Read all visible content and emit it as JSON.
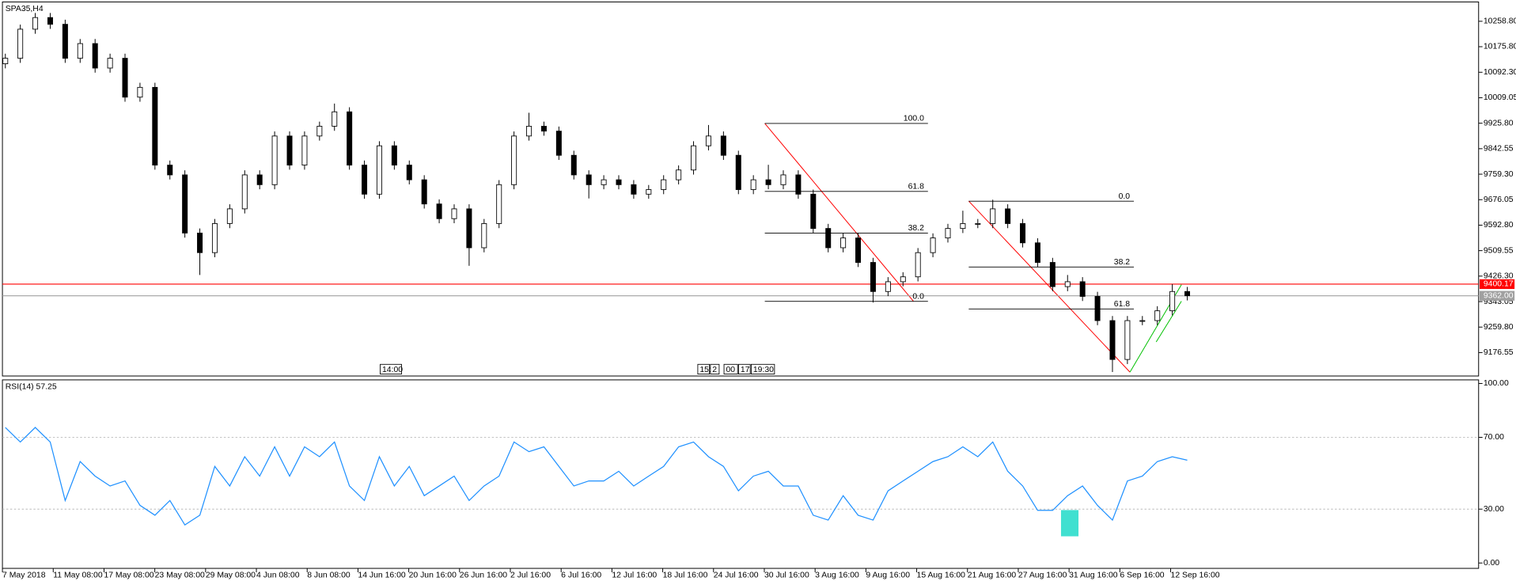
{
  "chart_data": [
    {
      "type": "candlestick",
      "title": "SPA35,H4",
      "ohlc": [
        [
          10120,
          10153,
          10105,
          10138
        ],
        [
          10138,
          10248,
          10123,
          10233
        ],
        [
          10233,
          10286,
          10218,
          10271
        ],
        [
          10271,
          10286,
          10234,
          10249
        ],
        [
          10249,
          10264,
          10123,
          10138
        ],
        [
          10138,
          10201,
          10123,
          10186
        ],
        [
          10186,
          10201,
          10091,
          10106
        ],
        [
          10106,
          10153,
          10091,
          10138
        ],
        [
          10138,
          10153,
          9996,
          10011
        ],
        [
          10011,
          10058,
          9996,
          10043
        ],
        [
          10043,
          10058,
          9774,
          9789
        ],
        [
          9789,
          9804,
          9742,
          9757
        ],
        [
          9757,
          9772,
          9552,
          9567
        ],
        [
          9567,
          9582,
          9430,
          9503
        ],
        [
          9503,
          9613,
          9488,
          9598
        ],
        [
          9598,
          9661,
          9583,
          9646
        ],
        [
          9646,
          9772,
          9631,
          9757
        ],
        [
          9757,
          9772,
          9710,
          9725
        ],
        [
          9725,
          9899,
          9710,
          9884
        ],
        [
          9884,
          9899,
          9774,
          9789
        ],
        [
          9789,
          9899,
          9774,
          9884
        ],
        [
          9884,
          9931,
          9869,
          9916
        ],
        [
          9916,
          9990,
          9901,
          9963
        ],
        [
          9963,
          9978,
          9774,
          9789
        ],
        [
          9789,
          9804,
          9679,
          9694
        ],
        [
          9694,
          9867,
          9679,
          9852
        ],
        [
          9852,
          9867,
          9774,
          9789
        ],
        [
          9789,
          9804,
          9726,
          9741
        ],
        [
          9741,
          9756,
          9647,
          9662
        ],
        [
          9662,
          9677,
          9599,
          9614
        ],
        [
          9614,
          9661,
          9599,
          9646
        ],
        [
          9646,
          9661,
          9460,
          9519
        ],
        [
          9519,
          9613,
          9504,
          9598
        ],
        [
          9598,
          9740,
          9583,
          9725
        ],
        [
          9725,
          9899,
          9710,
          9884
        ],
        [
          9884,
          9960,
          9869,
          9916
        ],
        [
          9916,
          9931,
          9885,
          9900
        ],
        [
          9900,
          9915,
          9806,
          9821
        ],
        [
          9821,
          9836,
          9742,
          9757
        ],
        [
          9757,
          9772,
          9680,
          9725
        ],
        [
          9725,
          9756,
          9710,
          9741
        ],
        [
          9741,
          9756,
          9710,
          9725
        ],
        [
          9725,
          9740,
          9679,
          9694
        ],
        [
          9694,
          9724,
          9679,
          9709
        ],
        [
          9709,
          9756,
          9694,
          9741
        ],
        [
          9741,
          9788,
          9726,
          9773
        ],
        [
          9773,
          9867,
          9758,
          9852
        ],
        [
          9852,
          9920,
          9837,
          9884
        ],
        [
          9884,
          9899,
          9806,
          9821
        ],
        [
          9821,
          9836,
          9694,
          9709
        ],
        [
          9709,
          9756,
          9694,
          9741
        ],
        [
          9741,
          9790,
          9710,
          9725
        ],
        [
          9725,
          9772,
          9710,
          9757
        ],
        [
          9757,
          9772,
          9679,
          9694
        ],
        [
          9694,
          9709,
          9567,
          9582
        ],
        [
          9582,
          9597,
          9504,
          9519
        ],
        [
          9519,
          9566,
          9504,
          9551
        ],
        [
          9551,
          9566,
          9456,
          9471
        ],
        [
          9471,
          9486,
          9340,
          9376
        ],
        [
          9376,
          9423,
          9361,
          9408
        ],
        [
          9408,
          9439,
          9393,
          9424
        ],
        [
          9424,
          9518,
          9409,
          9503
        ],
        [
          9503,
          9566,
          9488,
          9551
        ],
        [
          9551,
          9597,
          9536,
          9582
        ],
        [
          9582,
          9640,
          9567,
          9598
        ],
        [
          9598,
          9613,
          9583,
          9598
        ],
        [
          9598,
          9676,
          9583,
          9646
        ],
        [
          9646,
          9661,
          9583,
          9598
        ],
        [
          9598,
          9613,
          9520,
          9535
        ],
        [
          9535,
          9550,
          9456,
          9471
        ],
        [
          9471,
          9486,
          9377,
          9392
        ],
        [
          9392,
          9430,
          9377,
          9408
        ],
        [
          9408,
          9423,
          9345,
          9360
        ],
        [
          9360,
          9375,
          9266,
          9281
        ],
        [
          9281,
          9296,
          9113,
          9154
        ],
        [
          9154,
          9296,
          9139,
          9281
        ],
        [
          9281,
          9296,
          9266,
          9281
        ],
        [
          9281,
          9328,
          9266,
          9313
        ],
        [
          9313,
          9400,
          9298,
          9376
        ],
        [
          9376,
          9391,
          9347,
          9362
        ]
      ],
      "up_color": "#ffffff",
      "down_color": "#000000",
      "ylim": [
        9100,
        10322
      ],
      "yticks": [
        {
          "value": 10258.8,
          "label": "10258.80"
        },
        {
          "value": 10175.8,
          "label": "10175.80"
        },
        {
          "value": 10092.3,
          "label": "10092.30"
        },
        {
          "value": 10009.05,
          "label": "10009.05"
        },
        {
          "value": 9925.8,
          "label": "9925.80"
        },
        {
          "value": 9842.55,
          "label": "9842.55"
        },
        {
          "value": 9759.3,
          "label": "9759.30"
        },
        {
          "value": 9676.05,
          "label": "9676.05"
        },
        {
          "value": 9592.8,
          "label": "9592.80"
        },
        {
          "value": 9509.55,
          "label": "9509.55"
        },
        {
          "value": 9426.3,
          "label": "9426.30"
        },
        {
          "value": 9343.05,
          "label": "9343.05"
        },
        {
          "value": 9259.8,
          "label": "9259.80"
        },
        {
          "value": 9176.55,
          "label": "9176.55"
        }
      ],
      "price_lines": [
        {
          "value": 9400.17,
          "label": "9400.17",
          "color": "#ff0000"
        },
        {
          "value": 9362,
          "label": "9362.00",
          "color": "#a0a0a0"
        }
      ],
      "fibonacci": [
        {
          "levels": [
            {
              "label": "100.0",
              "value": 9925
            },
            {
              "label": "61.8",
              "value": 9703
            },
            {
              "label": "38.2",
              "value": 9567
            },
            {
              "label": "0.0",
              "value": 9344
            }
          ]
        },
        {
          "levels": [
            {
              "label": "0.0",
              "value": 9671
            },
            {
              "label": "38.2",
              "value": 9456
            },
            {
              "label": "61.8",
              "value": 9319
            }
          ]
        }
      ],
      "time_markers": [
        "14:00",
        "15:",
        "2",
        "00",
        "17",
        "19:30"
      ]
    },
    {
      "type": "line",
      "title": "RSI(14) 57.25",
      "color": "#1e90ff",
      "values": [
        75.5,
        67.4,
        75.5,
        67.4,
        34.8,
        56.5,
        48.4,
        42.9,
        45.7,
        32.1,
        26.6,
        34.8,
        21.2,
        26.6,
        53.8,
        42.9,
        59.2,
        48.4,
        64.7,
        48.4,
        64.7,
        59.2,
        67.4,
        42.9,
        34.8,
        59.2,
        42.9,
        53.8,
        37.5,
        42.9,
        48.4,
        34.8,
        42.9,
        48.4,
        67.4,
        62,
        64.7,
        53.8,
        42.9,
        45.7,
        45.7,
        51.1,
        42.9,
        48.4,
        53.8,
        64.7,
        67.4,
        59.2,
        53.8,
        40.2,
        48.4,
        51.1,
        42.9,
        42.9,
        26.6,
        23.9,
        37.5,
        26.6,
        23.9,
        40.2,
        45.7,
        51.1,
        56.5,
        59.2,
        64.7,
        59.2,
        67.4,
        51.1,
        42.9,
        29.3,
        29.3,
        37.5,
        42.9,
        32.1,
        23.9,
        45.7,
        48.4,
        56.5,
        59.2,
        57.25
      ],
      "ylim": [
        -3,
        102
      ],
      "yticks": [
        {
          "value": 100,
          "label": "100.00"
        },
        {
          "value": 70,
          "label": "70.00"
        },
        {
          "value": 30,
          "label": "30.00"
        },
        {
          "value": 0,
          "label": "0.00"
        }
      ],
      "levels": [
        70,
        30
      ],
      "time_labels": [
        "7 May 2018",
        "11 May 08:00",
        "17 May 08:00",
        "23 May 08:00",
        "29 May 08:00",
        "4 Jun 08:00",
        "8 Jun 08:00",
        "14 Jun 16:00",
        "20 Jun 16:00",
        "26 Jun 16:00",
        "2 Jul 16:00",
        "6 Jul 16:00",
        "12 Jul 16:00",
        "18 Jul 16:00",
        "24 Jul 16:00",
        "30 Jul 16:00",
        "3 Aug 16:00",
        "9 Aug 16:00",
        "15 Aug 16:00",
        "21 Aug 16:00",
        "27 Aug 16:00",
        "31 Aug 16:00",
        "6 Sep 16:00",
        "12 Sep 16:00"
      ]
    }
  ]
}
